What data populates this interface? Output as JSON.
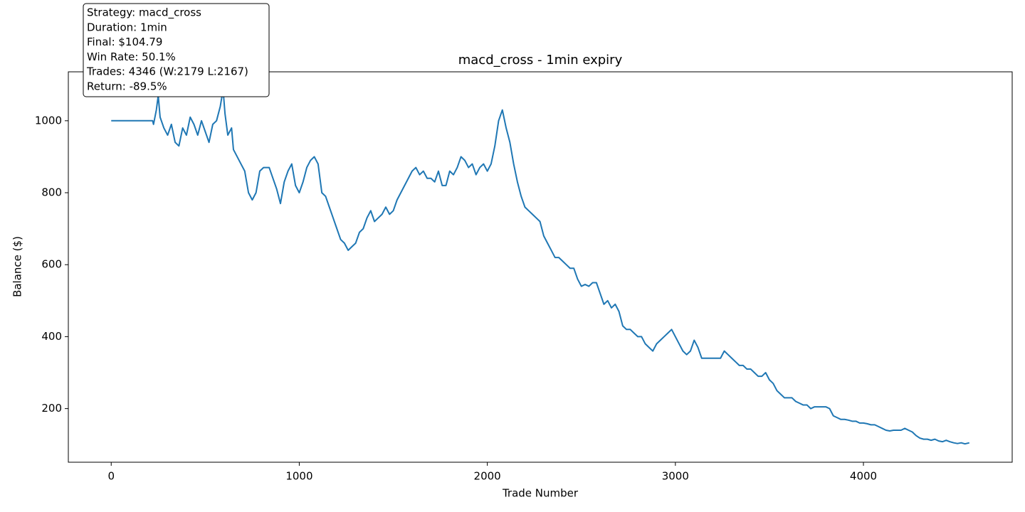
{
  "chart_data": {
    "type": "line",
    "title": "macd_cross - 1min expiry",
    "xlabel": "Trade Number",
    "ylabel": "Balance ($)",
    "annotation": [
      "Strategy: macd_cross",
      "Duration: 1min",
      "Final: $104.79",
      "Win Rate: 50.1%",
      "Trades: 4346 (W:2179 L:2167)",
      "Return: -89.5%"
    ],
    "xlim": [
      -228,
      4791
    ],
    "ylim": [
      51,
      1136
    ],
    "xticks": [
      0,
      1000,
      2000,
      3000,
      4000
    ],
    "yticks": [
      200,
      400,
      600,
      800,
      1000
    ],
    "grid": false,
    "x": [
      0,
      220,
      225,
      240,
      250,
      260,
      280,
      300,
      320,
      340,
      360,
      380,
      400,
      420,
      440,
      460,
      480,
      500,
      520,
      540,
      560,
      580,
      595,
      605,
      620,
      640,
      650,
      670,
      690,
      710,
      730,
      750,
      770,
      790,
      810,
      840,
      860,
      880,
      900,
      920,
      940,
      960,
      980,
      1000,
      1020,
      1040,
      1060,
      1080,
      1100,
      1120,
      1140,
      1160,
      1180,
      1200,
      1220,
      1240,
      1260,
      1280,
      1300,
      1320,
      1340,
      1360,
      1380,
      1400,
      1420,
      1440,
      1460,
      1480,
      1500,
      1520,
      1540,
      1560,
      1580,
      1600,
      1620,
      1640,
      1660,
      1680,
      1700,
      1720,
      1740,
      1760,
      1780,
      1800,
      1820,
      1840,
      1860,
      1880,
      1900,
      1920,
      1940,
      1960,
      1980,
      2000,
      2020,
      2040,
      2060,
      2080,
      2100,
      2120,
      2140,
      2160,
      2180,
      2200,
      2220,
      2240,
      2260,
      2280,
      2300,
      2320,
      2340,
      2360,
      2380,
      2400,
      2420,
      2440,
      2460,
      2480,
      2500,
      2520,
      2540,
      2560,
      2580,
      2600,
      2620,
      2640,
      2660,
      2680,
      2700,
      2720,
      2740,
      2760,
      2780,
      2800,
      2820,
      2840,
      2860,
      2880,
      2900,
      2920,
      2940,
      2960,
      2980,
      3000,
      3020,
      3040,
      3060,
      3080,
      3100,
      3120,
      3140,
      3160,
      3180,
      3200,
      3220,
      3240,
      3260,
      3280,
      3300,
      3320,
      3340,
      3360,
      3380,
      3400,
      3420,
      3440,
      3460,
      3480,
      3500,
      3520,
      3540,
      3560,
      3580,
      3600,
      3620,
      3640,
      3660,
      3680,
      3700,
      3720,
      3740,
      3760,
      3780,
      3800,
      3820,
      3840,
      3860,
      3880,
      3900,
      3920,
      3940,
      3960,
      3980,
      4000,
      4020,
      4040,
      4060,
      4080,
      4100,
      4120,
      4140,
      4160,
      4180,
      4200,
      4220,
      4240,
      4260,
      4280,
      4300,
      4320,
      4340,
      4360,
      4380,
      4400,
      4420,
      4440,
      4460,
      4480,
      4500,
      4520,
      4540,
      4563
    ],
    "series": [
      {
        "name": "Balance",
        "color": "#1f77b4",
        "values": [
          1000,
          1000,
          990,
          1030,
          1070,
          1010,
          980,
          960,
          990,
          940,
          930,
          980,
          960,
          1010,
          990,
          960,
          1000,
          970,
          940,
          990,
          1000,
          1040,
          1087,
          1020,
          960,
          980,
          920,
          900,
          880,
          860,
          800,
          780,
          800,
          860,
          870,
          870,
          840,
          810,
          770,
          830,
          860,
          880,
          820,
          800,
          830,
          870,
          890,
          900,
          880,
          800,
          790,
          760,
          730,
          700,
          670,
          660,
          640,
          650,
          660,
          690,
          700,
          730,
          750,
          720,
          730,
          740,
          760,
          740,
          750,
          780,
          800,
          820,
          840,
          860,
          870,
          850,
          860,
          840,
          840,
          830,
          860,
          820,
          820,
          860,
          850,
          870,
          900,
          890,
          870,
          880,
          850,
          870,
          880,
          860,
          880,
          930,
          1000,
          1030,
          980,
          940,
          880,
          830,
          790,
          760,
          750,
          740,
          730,
          720,
          680,
          660,
          640,
          620,
          620,
          610,
          600,
          590,
          590,
          560,
          540,
          545,
          540,
          550,
          550,
          520,
          490,
          500,
          480,
          490,
          470,
          430,
          420,
          420,
          410,
          400,
          400,
          380,
          370,
          360,
          380,
          390,
          400,
          410,
          420,
          400,
          380,
          360,
          350,
          360,
          390,
          370,
          340,
          340,
          340,
          340,
          340,
          340,
          360,
          350,
          340,
          330,
          320,
          320,
          310,
          310,
          300,
          290,
          290,
          300,
          280,
          270,
          250,
          240,
          230,
          230,
          230,
          220,
          215,
          210,
          210,
          200,
          205,
          205,
          205,
          205,
          200,
          180,
          175,
          170,
          170,
          168,
          165,
          165,
          160,
          160,
          158,
          155,
          155,
          150,
          145,
          140,
          138,
          140,
          140,
          140,
          145,
          140,
          135,
          125,
          118,
          115,
          115,
          112,
          115,
          110,
          108,
          112,
          108,
          105,
          103,
          105,
          102,
          105
        ]
      }
    ]
  }
}
